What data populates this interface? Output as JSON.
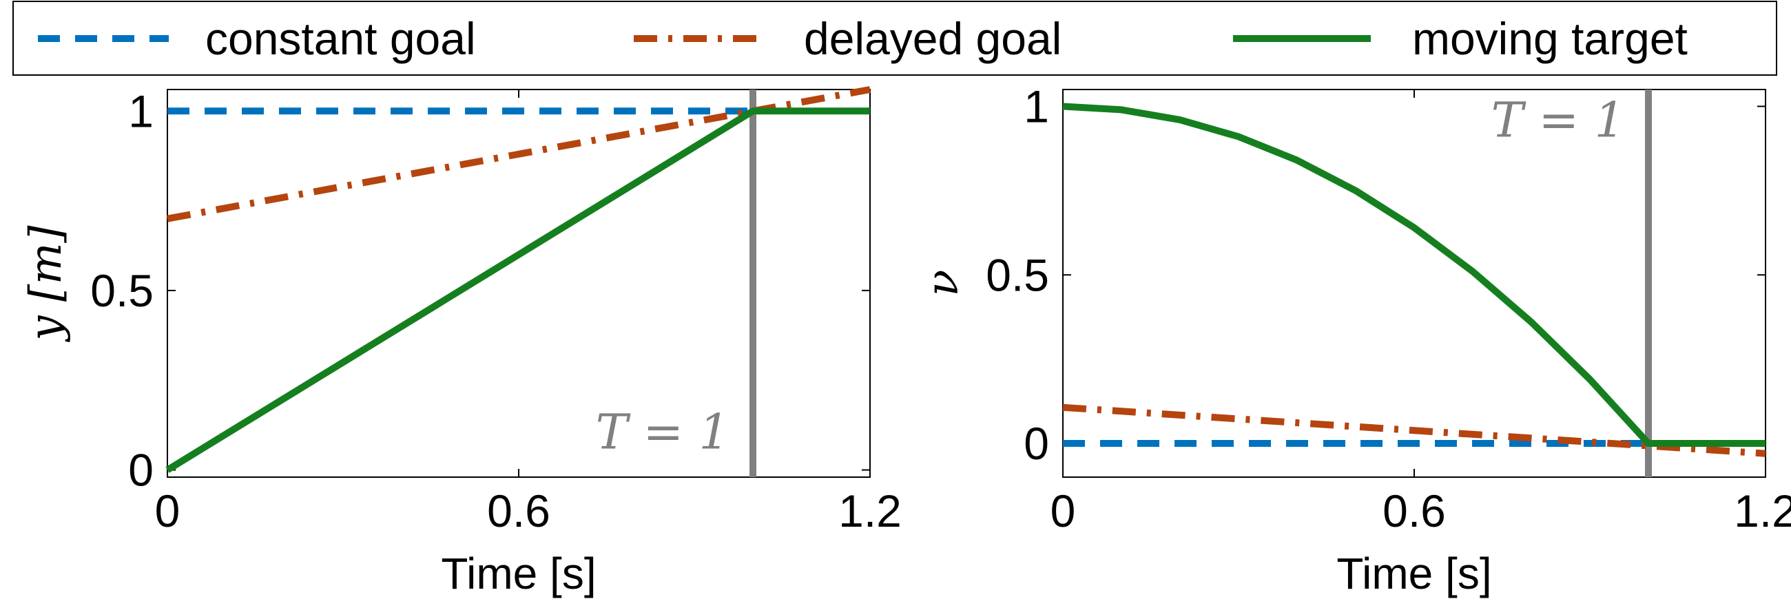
{
  "legend": {
    "placement": "top",
    "items": [
      {
        "label": "constant goal",
        "color": "#0072BD",
        "style": "dashed"
      },
      {
        "label": "delayed goal",
        "color": "#B5440F",
        "style": "dashdot"
      },
      {
        "label": "moving target",
        "color": "#157F1F",
        "style": "solid"
      }
    ]
  },
  "chart_data": [
    {
      "type": "line",
      "xlabel": "Time [s]",
      "ylabel": "y [m]",
      "xlim": [
        0,
        1.2
      ],
      "ylim": [
        -0.02,
        1.06
      ],
      "xticks": [
        {
          "value": 0,
          "label": "0"
        },
        {
          "value": 0.6,
          "label": "0.6"
        },
        {
          "value": 1.2,
          "label": "1.2"
        }
      ],
      "yticks": [
        {
          "value": 0,
          "label": "0"
        },
        {
          "value": 0.5,
          "label": "0.5"
        },
        {
          "value": 1,
          "label": "1"
        }
      ],
      "vline": {
        "x": 1.0,
        "color": "#808080"
      },
      "annotation": {
        "text": "T = 1",
        "x": 0.96,
        "y": 0.06
      },
      "series": [
        {
          "name": "constant goal",
          "x": [
            0,
            1.0
          ],
          "y": [
            1,
            1
          ]
        },
        {
          "name": "delayed goal",
          "x": [
            0,
            1.2
          ],
          "y": [
            0.7,
            1.06
          ]
        },
        {
          "name": "moving target",
          "x": [
            0,
            1.0,
            1.2
          ],
          "y": [
            0,
            1,
            1
          ]
        }
      ]
    },
    {
      "type": "line",
      "xlabel": "Time [s]",
      "ylabel": "ν",
      "xlim": [
        0,
        1.2
      ],
      "ylim": [
        -0.1,
        1.05
      ],
      "xticks": [
        {
          "value": 0,
          "label": "0"
        },
        {
          "value": 0.6,
          "label": "0.6"
        },
        {
          "value": 1.2,
          "label": "1.2"
        }
      ],
      "yticks": [
        {
          "value": 0,
          "label": "0"
        },
        {
          "value": 0.5,
          "label": "0.5"
        },
        {
          "value": 1,
          "label": "1"
        }
      ],
      "vline": {
        "x": 1.0,
        "color": "#808080"
      },
      "annotation": {
        "text": "T = 1",
        "x": 0.96,
        "y": 0.91
      },
      "series": [
        {
          "name": "constant goal",
          "x": [
            0,
            1.2
          ],
          "y": [
            0,
            0
          ]
        },
        {
          "name": "delayed goal",
          "x": [
            0,
            1.2
          ],
          "y": [
            0.107,
            -0.03
          ]
        },
        {
          "name": "moving target",
          "x": [
            0,
            0.1,
            0.2,
            0.3,
            0.4,
            0.5,
            0.6,
            0.7,
            0.8,
            0.9,
            1.0,
            1.2
          ],
          "y": [
            1,
            0.99,
            0.96,
            0.91,
            0.84,
            0.75,
            0.64,
            0.51,
            0.36,
            0.19,
            0,
            0
          ]
        }
      ]
    }
  ]
}
